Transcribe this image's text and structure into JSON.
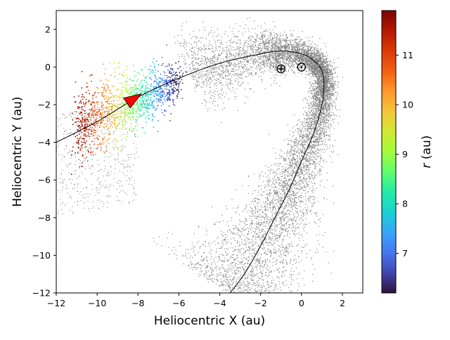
{
  "chart_data": {
    "type": "scatter",
    "xlabel": "Heliocentric X (au)",
    "ylabel": "Heliocentric Y (au)",
    "xlim": [
      -12,
      3
    ],
    "ylim": [
      -12,
      3
    ],
    "xticks": [
      "−12",
      "−10",
      "−8",
      "−6",
      "−4",
      "−2",
      "0",
      "2"
    ],
    "xtick_values": [
      -12,
      -10,
      -8,
      -6,
      -4,
      -2,
      0,
      2
    ],
    "yticks": [
      "−12",
      "−10",
      "−8",
      "−6",
      "−4",
      "−2",
      "0",
      "2"
    ],
    "ytick_values": [
      -12,
      -10,
      -8,
      -6,
      -4,
      -2,
      0,
      2
    ],
    "grid": false,
    "colorbar": {
      "label": "r (au)",
      "label_italic_part": "r",
      "label_rest": " (au)",
      "range": [
        6.2,
        11.9
      ],
      "ticks": [
        "7",
        "8",
        "9",
        "10",
        "11"
      ],
      "tick_values": [
        7,
        8,
        9,
        10,
        11
      ],
      "colormap": "turbo"
    },
    "colors": {
      "background_points": "#808080",
      "trajectory": "#000000",
      "arrow": "#ff0000"
    },
    "symbols": {
      "earth": "⊕",
      "sun": "⊙"
    },
    "markers": {
      "earth": {
        "x": -1.0,
        "y": -0.1
      },
      "sun": {
        "x": 0.0,
        "y": 0.0
      }
    },
    "trajectory": [
      [
        -12.0,
        -4.0
      ],
      [
        -10.0,
        -2.9
      ],
      [
        -8.0,
        -1.6
      ],
      [
        -6.0,
        -0.6
      ],
      [
        -4.0,
        0.2
      ],
      [
        -2.0,
        0.7
      ],
      [
        -1.0,
        0.85
      ],
      [
        0.0,
        0.7
      ],
      [
        0.6,
        0.35
      ],
      [
        1.0,
        -0.2
      ],
      [
        1.1,
        -1.0
      ],
      [
        1.0,
        -2.0
      ],
      [
        0.6,
        -3.5
      ],
      [
        0.0,
        -5.0
      ],
      [
        -0.6,
        -6.5
      ],
      [
        -1.3,
        -8.0
      ],
      [
        -2.0,
        -9.5
      ],
      [
        -2.8,
        -11.0
      ],
      [
        -3.5,
        -12.0
      ]
    ],
    "arrow": {
      "x": -8.3,
      "y": -1.8,
      "direction": "toward upper-right"
    },
    "colored_cloud": {
      "x_range": [
        -11.0,
        -6.0
      ],
      "r_range": [
        6.2,
        11.9
      ],
      "description_source": "points colored by r along inbound leg"
    }
  }
}
